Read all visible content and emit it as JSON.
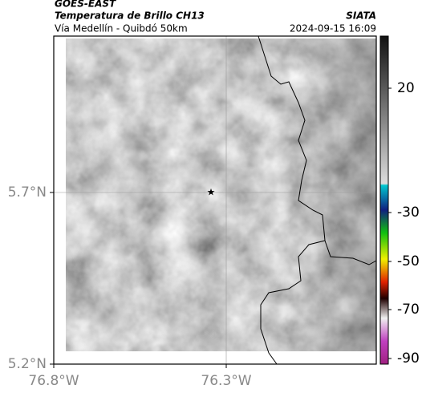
{
  "header": {
    "source": "GOES-EAST",
    "title": "Temperatura de Brillo CH13",
    "organization": "SIATA",
    "subtitle": "Vía Medellín - Quibdó 50km",
    "timestamp": "2024-09-15 16:09"
  },
  "axes": {
    "y_ticks": [
      "5.7°N",
      "5.2°N"
    ],
    "x_ticks": [
      "76.8°W",
      "76.3°W"
    ]
  },
  "colorbar": {
    "ticks": [
      20,
      -30,
      -50,
      -70,
      -90
    ]
  }
}
